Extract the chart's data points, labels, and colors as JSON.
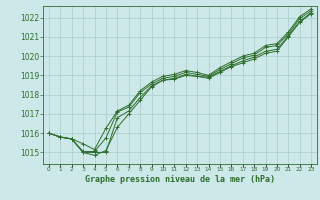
{
  "title": "Graphe pression niveau de la mer (hPa)",
  "bg_color": "#cde8e8",
  "grid_color": "#aacccc",
  "line_color": "#2d6e2d",
  "marker_color": "#2d6e2d",
  "x_ticks": [
    0,
    1,
    2,
    3,
    4,
    5,
    6,
    7,
    8,
    9,
    10,
    11,
    12,
    13,
    14,
    15,
    16,
    17,
    18,
    19,
    20,
    21,
    22,
    23
  ],
  "ylim": [
    1014.4,
    1022.6
  ],
  "yticks": [
    1015,
    1016,
    1017,
    1018,
    1019,
    1020,
    1021,
    1022
  ],
  "series": [
    [
      1016.0,
      1015.8,
      1015.7,
      1015.0,
      1015.0,
      1015.0,
      1016.8,
      1017.15,
      1017.85,
      1018.45,
      1018.75,
      1018.8,
      1019.0,
      1018.95,
      1018.85,
      1019.15,
      1019.45,
      1019.65,
      1019.85,
      1020.15,
      1020.25,
      1021.0,
      1021.75,
      1022.2
    ],
    [
      1016.0,
      1015.8,
      1015.7,
      1015.0,
      1014.85,
      1015.1,
      1016.3,
      1017.0,
      1017.7,
      1018.4,
      1018.75,
      1018.85,
      1019.05,
      1018.95,
      1018.9,
      1019.2,
      1019.5,
      1019.75,
      1019.95,
      1020.25,
      1020.35,
      1021.05,
      1021.8,
      1022.25
    ],
    [
      1016.0,
      1015.8,
      1015.7,
      1015.05,
      1015.05,
      1015.75,
      1017.1,
      1017.35,
      1018.1,
      1018.55,
      1018.85,
      1018.95,
      1019.15,
      1019.05,
      1018.95,
      1019.3,
      1019.6,
      1019.9,
      1020.05,
      1020.45,
      1020.55,
      1021.15,
      1021.95,
      1022.35
    ],
    [
      1016.0,
      1015.8,
      1015.7,
      1015.45,
      1015.15,
      1016.25,
      1017.15,
      1017.45,
      1018.2,
      1018.65,
      1018.95,
      1019.05,
      1019.25,
      1019.15,
      1019.0,
      1019.4,
      1019.7,
      1020.0,
      1020.15,
      1020.55,
      1020.65,
      1021.25,
      1022.05,
      1022.45
    ]
  ]
}
